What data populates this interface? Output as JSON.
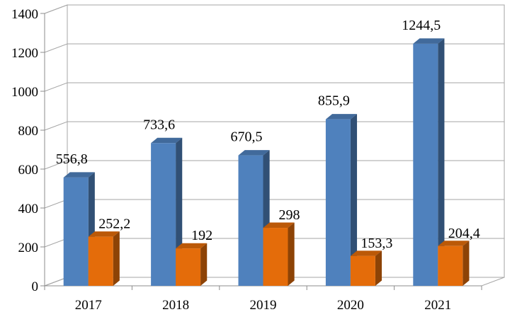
{
  "chart_data": {
    "type": "bar",
    "style": "3d-clustered",
    "categories": [
      "2017",
      "2018",
      "2019",
      "2020",
      "2021"
    ],
    "series": [
      {
        "values": [
          556.8,
          733.6,
          670.5,
          855.9,
          1244.5
        ],
        "labels": [
          "556,8",
          "733,6",
          "670,5",
          "855,9",
          "1244,5"
        ],
        "color": "#4f81bd"
      },
      {
        "values": [
          252.2,
          192,
          298,
          153.3,
          204.4
        ],
        "labels": [
          "252,2",
          "192",
          "298",
          "153,3",
          "204,4"
        ],
        "color": "#e46c0a"
      }
    ],
    "yticks": [
      "0",
      "200",
      "400",
      "600",
      "800",
      "1000",
      "1200",
      "1400"
    ],
    "ylim": [
      0,
      1400
    ],
    "grid": true,
    "legend": "none"
  }
}
